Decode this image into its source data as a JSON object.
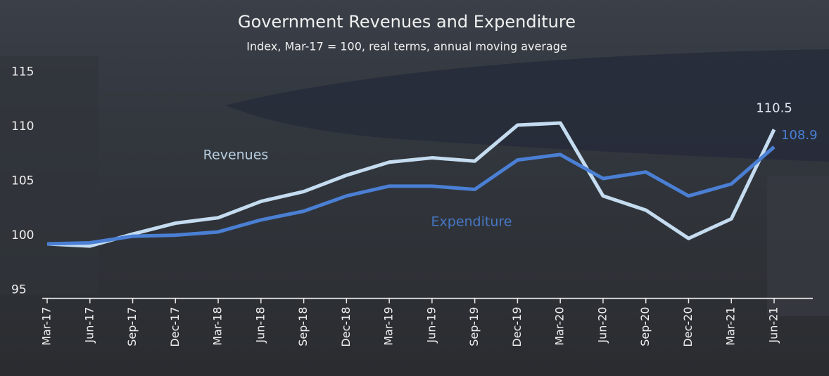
{
  "chart_data": {
    "type": "line",
    "title": "Government Revenues and Expenditure",
    "subtitle": "Index, Mar-17 = 100, real terms, annual moving average",
    "categories": [
      "Mar-17",
      "Jun-17",
      "Sep-17",
      "Dec-17",
      "Mar-18",
      "Jun-18",
      "Sep-18",
      "Dec-18",
      "Mar-19",
      "Jun-19",
      "Sep-19",
      "Dec-19",
      "Mar-20",
      "Jun-20",
      "Sep-20",
      "Dec-20",
      "Mar-21",
      "Jun-21"
    ],
    "series": [
      {
        "name": "Revenues",
        "color": "#c5dcf0",
        "values": [
          100,
          99.8,
          100.9,
          101.9,
          102.4,
          103.9,
          104.8,
          106.3,
          107.5,
          107.9,
          107.6,
          110.9,
          111.1,
          104.4,
          103.1,
          100.5,
          102.3,
          110.5
        ],
        "value_labels": [
          null,
          null,
          null,
          null,
          null,
          null,
          null,
          null,
          null,
          null,
          null,
          null,
          null,
          null,
          null,
          null,
          null,
          "110.5"
        ]
      },
      {
        "name": "Expenditure",
        "color": "#4a7fd4",
        "values": [
          100,
          100.1,
          100.7,
          100.8,
          101.1,
          102.2,
          103,
          104.4,
          105.3,
          105.3,
          105,
          107.7,
          108.2,
          106,
          106.6,
          104.4,
          105.5,
          108.9
        ],
        "value_labels": [
          null,
          null,
          null,
          null,
          null,
          null,
          null,
          null,
          null,
          null,
          null,
          null,
          null,
          null,
          null,
          null,
          null,
          "108.9"
        ]
      }
    ],
    "ylim": [
      95,
      117
    ],
    "yticks": [
      95,
      100,
      105,
      110,
      115
    ],
    "grid": false
  }
}
